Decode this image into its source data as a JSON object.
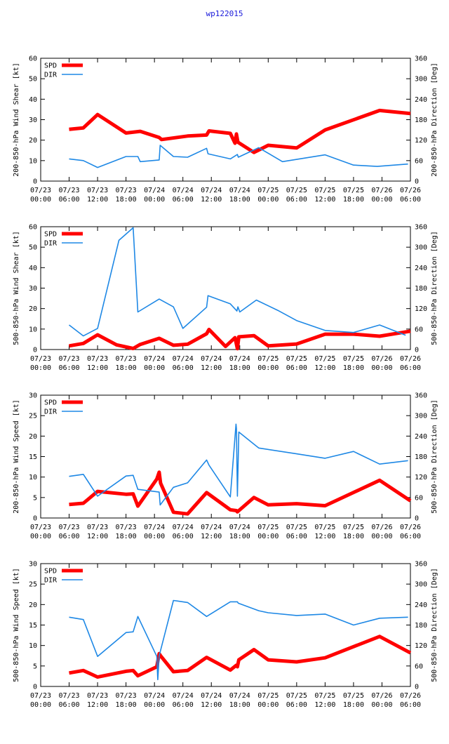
{
  "page_title": "wp122015",
  "colors": {
    "spd": "#ff0000",
    "dir": "#1e88e5",
    "axis": "#000000",
    "title": "#1a1adb"
  },
  "x_tick_labels": [
    [
      "07/23",
      "00:00"
    ],
    [
      "07/23",
      "06:00"
    ],
    [
      "07/23",
      "12:00"
    ],
    [
      "07/23",
      "18:00"
    ],
    [
      "07/24",
      "00:00"
    ],
    [
      "07/24",
      "06:00"
    ],
    [
      "07/24",
      "12:00"
    ],
    [
      "07/24",
      "18:00"
    ],
    [
      "07/25",
      "00:00"
    ],
    [
      "07/25",
      "06:00"
    ],
    [
      "07/25",
      "12:00"
    ],
    [
      "07/25",
      "18:00"
    ],
    [
      "07/26",
      "00:00"
    ],
    [
      "07/26",
      "06:00"
    ]
  ],
  "chart_data": [
    {
      "type": "line",
      "title": "",
      "xlabel": "",
      "ylabel_left": "200-850-hPa Wind Shear [kt]",
      "ylabel_right": "200-850-hPa Direction [Deg]",
      "xlim_hours": [
        0,
        78
      ],
      "ylim_left": [
        0,
        60
      ],
      "yticks_left": [
        0,
        10,
        20,
        30,
        40,
        50,
        60
      ],
      "ylim_right": [
        0,
        360
      ],
      "yticks_right": [
        0,
        60,
        120,
        180,
        240,
        300,
        360
      ],
      "legend": [
        "SPD",
        "DIR"
      ],
      "series": [
        {
          "name": "SPD",
          "axis": "left",
          "x": [
            6,
            9,
            12,
            18,
            21,
            25,
            25.5,
            31,
            35,
            35.5,
            40,
            41,
            41.3,
            41.6,
            45,
            48,
            54,
            60,
            71.5,
            78
          ],
          "y": [
            25.3,
            26,
            32.5,
            23.5,
            24.3,
            21.3,
            20.3,
            22,
            22.5,
            24.5,
            23.3,
            18.5,
            23,
            19,
            14,
            17.5,
            16.2,
            25,
            34.5,
            33
          ]
        },
        {
          "name": "DIR",
          "axis": "right",
          "x": [
            6,
            9,
            12,
            18,
            20.5,
            21,
            25,
            25.2,
            28,
            31,
            35,
            35.3,
            40,
            41.5,
            41.7,
            46,
            51,
            60,
            66,
            71,
            77.5
          ],
          "y": [
            65,
            60,
            40,
            72,
            72,
            57,
            62,
            105,
            72,
            70,
            96,
            80,
            65,
            78,
            70,
            98,
            57,
            77,
            47,
            43,
            50
          ]
        }
      ]
    },
    {
      "type": "line",
      "title": "",
      "xlabel": "",
      "ylabel_left": "500-850-hPa Wind Shear [kt]",
      "ylabel_right": "500-850-hPa Direction [Deg]",
      "xlim_hours": [
        0,
        78
      ],
      "ylim_left": [
        0,
        60
      ],
      "yticks_left": [
        0,
        10,
        20,
        30,
        40,
        50,
        60
      ],
      "ylim_right": [
        0,
        360
      ],
      "yticks_right": [
        0,
        60,
        120,
        180,
        240,
        300,
        360
      ],
      "legend": [
        "SPD",
        "DIR"
      ],
      "series": [
        {
          "name": "SPD",
          "axis": "left",
          "x": [
            6,
            9,
            12,
            16,
            19.5,
            21,
            25,
            28,
            31,
            35,
            35.5,
            39,
            41,
            41.5,
            41.8,
            45,
            48,
            54,
            60,
            66,
            71.5,
            78
          ],
          "y": [
            1.8,
            3,
            7.2,
            2.3,
            0.5,
            2.5,
            5.5,
            2.1,
            2.6,
            7.7,
            9.8,
            1.5,
            5.8,
            0.4,
            6.2,
            6.8,
            1.8,
            2.7,
            7.5,
            7.5,
            6.5,
            9
          ]
        },
        {
          "name": "DIR",
          "axis": "right",
          "x": [
            6,
            9,
            12,
            16.5,
            19.5,
            20.5,
            25,
            28,
            30,
            35,
            35.3,
            40,
            41.4,
            41.6,
            42,
            45.5,
            50,
            54,
            60,
            66,
            71.5,
            77
          ],
          "y": [
            72,
            40,
            62,
            320,
            357,
            110,
            148,
            125,
            62,
            124,
            158,
            134,
            113,
            125,
            110,
            145,
            115,
            85,
            56,
            50,
            72,
            42
          ]
        }
      ]
    },
    {
      "type": "line",
      "title": "",
      "xlabel": "",
      "ylabel_left": "200-850-hPa Wind Speed [kt]",
      "ylabel_right": "500-850-hPa Direction [Deg]",
      "xlim_hours": [
        0,
        78
      ],
      "ylim_left": [
        0,
        30
      ],
      "yticks_left": [
        0,
        5,
        10,
        15,
        20,
        25,
        30
      ],
      "ylim_right": [
        0,
        360
      ],
      "yticks_right": [
        0,
        60,
        120,
        180,
        240,
        300,
        360
      ],
      "legend": [
        "SPD",
        "DIR"
      ],
      "series": [
        {
          "name": "SPD",
          "axis": "left",
          "x": [
            6,
            9,
            12,
            18,
            19.5,
            20.5,
            24.5,
            25,
            25.3,
            28,
            31,
            35,
            40,
            41.3,
            41.5,
            45,
            48,
            54,
            60,
            71.5,
            78
          ],
          "y": [
            3.3,
            3.6,
            6.5,
            5.8,
            5.9,
            2.9,
            9.5,
            11.2,
            8.5,
            1.4,
            1,
            6.2,
            2,
            1.8,
            1.5,
            5,
            3.2,
            3.5,
            3,
            9.2,
            4.2
          ]
        },
        {
          "name": "DIR",
          "axis": "right",
          "x": [
            6,
            9,
            12,
            18,
            19.5,
            20.5,
            25,
            25.2,
            28,
            31,
            35,
            35.5,
            40,
            41.2,
            41.3,
            41.5,
            41.8,
            46,
            54,
            60,
            66,
            71.5,
            77.5
          ],
          "y": [
            122,
            128,
            64,
            123,
            125,
            84,
            76,
            38,
            90,
            103,
            170,
            155,
            62,
            275,
            262,
            64,
            252,
            205,
            188,
            175,
            195,
            158,
            168
          ]
        }
      ]
    },
    {
      "type": "line",
      "title": "",
      "xlabel": "",
      "ylabel_left": "500-850-hPa Wind Speed [kt]",
      "ylabel_right": "500-850-hPa Direction [Deg]",
      "xlim_hours": [
        0,
        78
      ],
      "ylim_left": [
        0,
        30
      ],
      "yticks_left": [
        0,
        5,
        10,
        15,
        20,
        25,
        30
      ],
      "ylim_right": [
        0,
        360
      ],
      "yticks_right": [
        0,
        60,
        120,
        180,
        240,
        300,
        360
      ],
      "legend": [
        "SPD",
        "DIR"
      ],
      "series": [
        {
          "name": "SPD",
          "axis": "left",
          "x": [
            6,
            9,
            12,
            18,
            19.5,
            20.5,
            24.5,
            25,
            25.3,
            28,
            31,
            35,
            40,
            41.3,
            41.5,
            41.8,
            45,
            48,
            54,
            60,
            71.5,
            78
          ],
          "y": [
            3.3,
            3.9,
            2.3,
            3.7,
            3.9,
            2.6,
            4.8,
            8,
            7.5,
            3.6,
            3.9,
            7.1,
            4,
            5.2,
            4.8,
            6.5,
            9,
            6.5,
            6,
            7,
            12.2,
            8.2
          ]
        },
        {
          "name": "DIR",
          "axis": "right",
          "x": [
            6,
            9,
            12,
            18,
            19.5,
            20.5,
            24.5,
            24.7,
            25,
            28,
            31,
            35,
            40,
            41.5,
            41.7,
            46,
            48,
            54,
            60,
            66,
            71.5,
            77.5
          ],
          "y": [
            203,
            196,
            88,
            158,
            160,
            205,
            88,
            20,
            90,
            252,
            246,
            205,
            248,
            248,
            244,
            222,
            216,
            208,
            212,
            180,
            200,
            203
          ]
        }
      ]
    }
  ]
}
